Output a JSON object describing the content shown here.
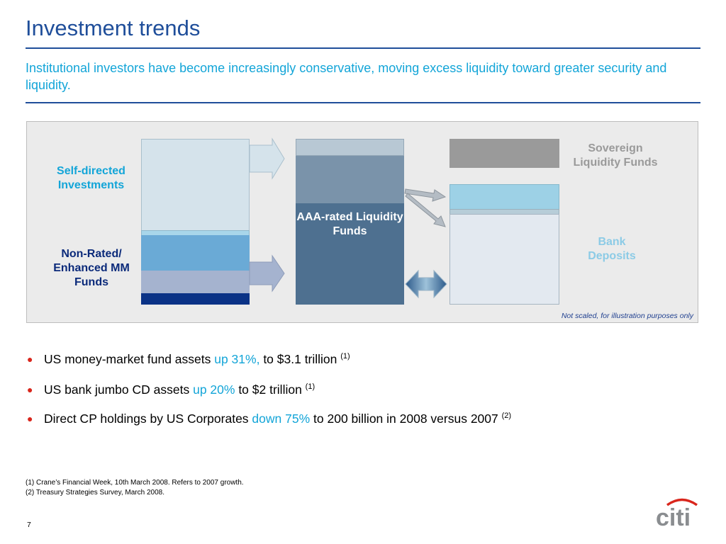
{
  "header": {
    "title": "Investment trends",
    "subtitle": "Institutional investors have become increasingly conservative, moving excess liquidity toward greater security and liquidity."
  },
  "diagram": {
    "labels": {
      "self_directed": "Self-directed Investments",
      "non_rated": "Non-Rated/ Enhanced MM Funds",
      "aaa_rated": "AAA-rated Liquidity Funds",
      "sovereign": "Sovereign Liquidity Funds",
      "bank_deposits": "Bank Deposits"
    },
    "note": "Not scaled, for illustration purposes only",
    "colors": {
      "navy": "#0b3a8c",
      "accent_blue": "#13a5d8",
      "sovereign_grey": "#9a9a9a",
      "aaa_dark": "#4e7090",
      "aaa_mid": "#7a93aa",
      "aaa_light": "#b8c8d4",
      "self_directed_fill": "#d5e3eb",
      "non_rated_blue": "#6aaad6",
      "non_rated_lavender": "#a5b3cf",
      "non_rated_navy": "#0a3286",
      "bank_light": "#9dd1e6",
      "bank_base": "#e3e9f0"
    }
  },
  "bullets": [
    {
      "pre": "US money-market fund assets ",
      "hl": "up 31%,",
      "post": " to $3.1 trillion ",
      "ref": "(1)"
    },
    {
      "pre": "US bank jumbo CD assets ",
      "hl": "up 20%",
      "post": " to $2 trillion ",
      "ref": "(1)"
    },
    {
      "pre": "Direct CP holdings by US Corporates ",
      "hl": "down 75%",
      "post": " to 200 billion in 2008 versus 2007 ",
      "ref": "(2)"
    }
  ],
  "footnotes": [
    "(1) Crane’s Financial Week, 10th March 2008.  Refers to 2007 growth.",
    "(2) Treasury Strategies Survey, March 2008."
  ],
  "page_number": "7",
  "logo": {
    "text": "citi",
    "arc_color": "#d9261c",
    "text_color": "#8a8d90"
  }
}
